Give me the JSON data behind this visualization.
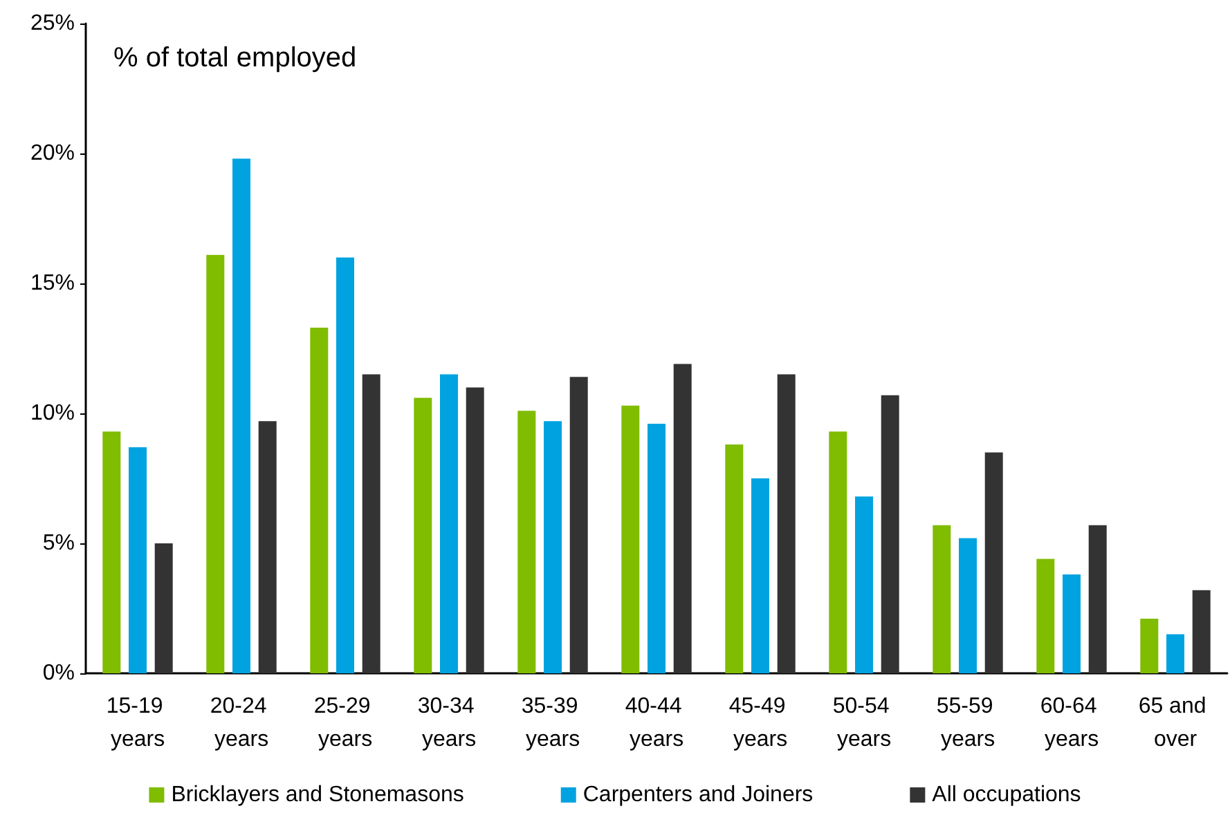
{
  "chart_data": {
    "type": "bar",
    "categories": [
      "15-19 years",
      "20-24 years",
      "25-29 years",
      "30-34 years",
      "35-39 years",
      "40-44 years",
      "45-49 years",
      "50-54 years",
      "55-59 years",
      "60-64 years",
      "65 and over"
    ],
    "series": [
      {
        "name": "Bricklayers and Stonemasons",
        "color": "#80bc00",
        "values": [
          9.3,
          16.1,
          13.3,
          10.6,
          10.1,
          10.3,
          8.8,
          9.3,
          5.7,
          4.4,
          2.1
        ]
      },
      {
        "name": "Carpenters and Joiners",
        "color": "#00a3e0",
        "values": [
          8.7,
          19.8,
          16.0,
          11.5,
          9.7,
          9.6,
          7.5,
          6.8,
          5.2,
          3.8,
          1.5
        ]
      },
      {
        "name": "All occupations",
        "color": "#333333",
        "values": [
          5.0,
          9.7,
          11.5,
          11.0,
          11.4,
          11.9,
          11.5,
          10.7,
          8.5,
          5.7,
          3.2
        ]
      }
    ],
    "ylim": [
      0,
      25
    ],
    "yticks": [
      {
        "value": 0,
        "label": "0%"
      },
      {
        "value": 5,
        "label": "5%"
      },
      {
        "value": 10,
        "label": "10%"
      },
      {
        "value": 15,
        "label": "15%"
      },
      {
        "value": 20,
        "label": "20%"
      },
      {
        "value": 25,
        "label": "25%"
      }
    ],
    "annotations": [
      "% of total employed"
    ],
    "grid": false,
    "legend": "bottom"
  }
}
